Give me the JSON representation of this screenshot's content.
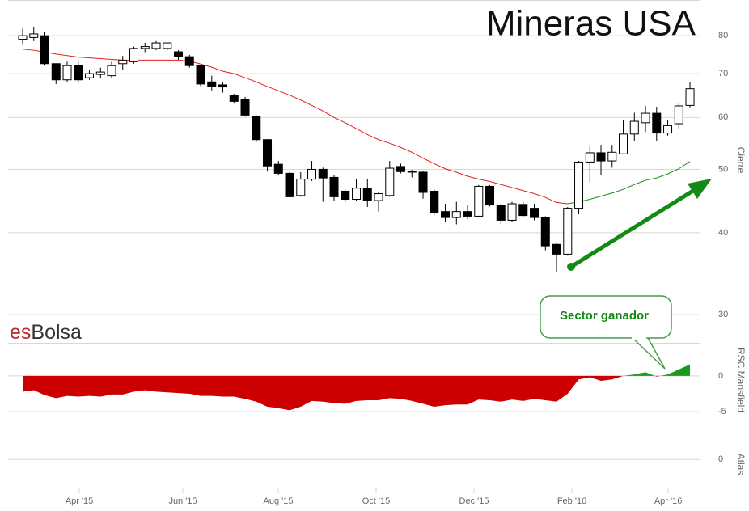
{
  "chart_data": [
    {
      "type": "candlestick",
      "title": "Mineras USA",
      "watermark": [
        "es",
        "Bolsa"
      ],
      "y_label": "Cierre",
      "log_scale": true,
      "grid": true,
      "ylim": [
        29.5,
        90.7
      ],
      "yticks": [
        30,
        40,
        50,
        60,
        70,
        80
      ],
      "xlim": [
        -1.31,
        60.87
      ],
      "up_color": "#ffffff",
      "down_color": "#000000",
      "open": [
        79,
        79.5,
        80,
        72.5,
        68.5,
        72,
        69,
        69.8,
        69.5,
        72.5,
        73,
        76.5,
        76.5,
        76.5,
        75.6,
        74.3,
        72,
        68,
        67.3,
        64.8,
        64,
        60.2,
        55.5,
        50.9,
        49.3,
        45.6,
        48.3,
        50,
        48.6,
        46.3,
        45,
        46.8,
        44.8,
        45.6,
        50.5,
        49.7,
        49.5,
        46.3,
        43.1,
        42.2,
        43.1,
        42.4,
        47.1,
        44.1,
        41.8,
        44.2,
        43.6,
        42.2,
        38.4,
        37.1,
        43.6,
        51.3,
        53,
        51.5,
        52.8,
        56.6,
        58.9,
        60.9,
        56.8,
        58.7,
        62.6
      ],
      "high": [
        82,
        82.5,
        81,
        72.5,
        73,
        73,
        71,
        71.5,
        73,
        74.5,
        77,
        78,
        78.5,
        78,
        76,
        74.8,
        72,
        69.5,
        68,
        65.2,
        64.5,
        60.5,
        55.6,
        51.5,
        49.5,
        49.5,
        51.5,
        50.3,
        49,
        46.5,
        48.3,
        48.3,
        46.2,
        51.5,
        51,
        49.9,
        49.7,
        46.6,
        44.3,
        44.6,
        44.1,
        47.3,
        47.3,
        44.3,
        44.6,
        44.6,
        44.3,
        42.4,
        38.6,
        43.8,
        51.5,
        54.3,
        54.5,
        54.5,
        59.5,
        61,
        62.5,
        62.3,
        59.5,
        63,
        68
      ],
      "low": [
        77.5,
        78.5,
        72,
        67.5,
        68,
        67.8,
        68.5,
        69,
        69,
        71,
        72.5,
        75.5,
        76,
        76,
        73.5,
        71.5,
        67,
        66,
        65.5,
        63,
        60.2,
        55,
        49.6,
        49,
        45.3,
        45.4,
        48,
        44.6,
        44.8,
        44.6,
        44.8,
        43.8,
        43.1,
        45.4,
        49.3,
        48.6,
        45.1,
        42.6,
        41.5,
        41.2,
        42,
        42.3,
        43.9,
        41.2,
        41.5,
        42.2,
        41.8,
        37.6,
        34.9,
        36.9,
        42.7,
        47.8,
        49,
        50.3,
        52.8,
        55.3,
        57,
        55.3,
        56.3,
        57.6,
        62.2
      ],
      "close": [
        80,
        80.5,
        72.5,
        68.5,
        72,
        68.5,
        70,
        70.4,
        72,
        73.3,
        76.5,
        77,
        78,
        78,
        74.3,
        72,
        67.5,
        67,
        66.8,
        63.5,
        60.5,
        55.5,
        50.6,
        49.3,
        45.4,
        48.3,
        50,
        48.5,
        45.4,
        45,
        46.8,
        44.8,
        45.9,
        50.2,
        49.6,
        49.5,
        46.1,
        42.9,
        42.2,
        43.1,
        42.4,
        47.1,
        44.1,
        41.8,
        44.3,
        42.5,
        42.2,
        38.2,
        37.1,
        43.6,
        51.3,
        53,
        51.5,
        53.1,
        56.6,
        59.2,
        60.9,
        56.8,
        58.3,
        62.5,
        66.4
      ],
      "lines": [
        {
          "color": "#e02020",
          "values": [
            76.3,
            76,
            75.5,
            75,
            74.6,
            74.2,
            74,
            73.8,
            73.6,
            73.4,
            73.4,
            73.4,
            73.4,
            73.4,
            73.4,
            73.2,
            72.4,
            71.6,
            70.6,
            70,
            69,
            68,
            66.9,
            65.9,
            64.9,
            63.8,
            62.6,
            61.4,
            60,
            58.9,
            57.7,
            56.5,
            55.5,
            54.8,
            54,
            53.1,
            52,
            51,
            50.1,
            49.5,
            48.8,
            48.3,
            47.9,
            47.4,
            46.9,
            46.4,
            45.9,
            45.3,
            44.5,
            44.3,
            null,
            null,
            null,
            null,
            null,
            null,
            null,
            null,
            null,
            null,
            null
          ]
        },
        {
          "color": "#1a8a1a",
          "values": [
            null,
            null,
            null,
            null,
            null,
            null,
            null,
            null,
            null,
            null,
            null,
            null,
            null,
            null,
            null,
            null,
            null,
            null,
            null,
            null,
            null,
            null,
            null,
            null,
            null,
            null,
            null,
            null,
            null,
            null,
            null,
            null,
            null,
            null,
            null,
            null,
            null,
            null,
            null,
            null,
            null,
            null,
            null,
            null,
            null,
            null,
            null,
            null,
            null,
            44.3,
            44.6,
            45,
            45.5,
            46,
            46.6,
            47.4,
            48.1,
            48.5,
            49.2,
            50.1,
            51.4
          ]
        }
      ],
      "annotation": "Sector ganador"
    },
    {
      "type": "area",
      "y_label": "RSC Mansfield",
      "grid": true,
      "ylim": [
        -6,
        4.5
      ],
      "yticks": [
        0,
        -5
      ],
      "xlim": [
        -1.31,
        60.87
      ],
      "positive_color": "#1a9a1a",
      "negative_color": "#cc0000",
      "values": [
        -2.2,
        -2.0,
        -2.7,
        -3.1,
        -2.8,
        -2.9,
        -2.8,
        -2.9,
        -2.6,
        -2.6,
        -2.2,
        -2.0,
        -2.2,
        -2.3,
        -2.4,
        -2.5,
        -2.8,
        -2.8,
        -2.9,
        -2.9,
        -3.2,
        -3.6,
        -4.3,
        -4.5,
        -4.8,
        -4.3,
        -3.5,
        -3.6,
        -3.8,
        -3.9,
        -3.5,
        -3.4,
        -3.4,
        -3.1,
        -3.2,
        -3.5,
        -3.9,
        -4.3,
        -4.1,
        -4.0,
        -4.0,
        -3.3,
        -3.4,
        -3.6,
        -3.3,
        -3.5,
        -3.2,
        -3.4,
        -3.6,
        -2.5,
        -0.5,
        -0.2,
        -0.7,
        -0.5,
        0,
        0.2,
        0.5,
        -0.1,
        0.2,
        0.9,
        1.6
      ]
    },
    {
      "type": "empty",
      "y_label": "Atlas",
      "grid": true,
      "ylim": [
        -1.5,
        1
      ],
      "yticks": [
        0
      ],
      "xlim": [
        -1.31,
        60.87
      ],
      "xticks": [
        {
          "value": 5.09,
          "label": "Apr '15"
        },
        {
          "value": 14.4,
          "label": "Jun '15"
        },
        {
          "value": 22.98,
          "label": "Aug '15"
        },
        {
          "value": 31.78,
          "label": "Oct '15"
        },
        {
          "value": 40.58,
          "label": "Dec '15"
        },
        {
          "value": 49.38,
          "label": "Feb '16"
        },
        {
          "value": 58.04,
          "label": "Apr '16"
        }
      ]
    }
  ]
}
